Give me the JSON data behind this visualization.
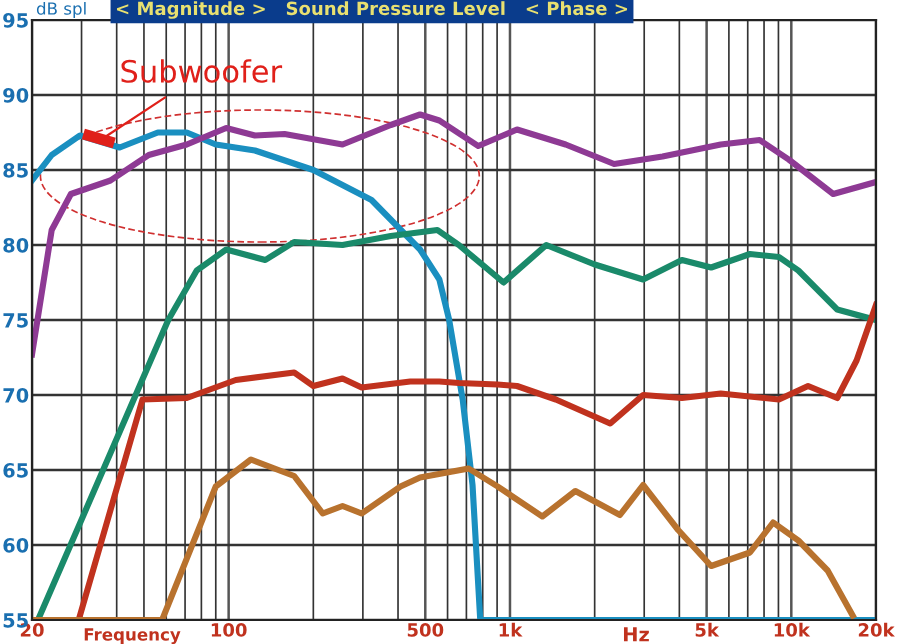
{
  "chart_data": {
    "type": "line",
    "title": "< Magnitude >   Sound Pressure Level   < Phase >",
    "ylabel": "dB spl",
    "xlabel": "Frequency",
    "annotations": [
      {
        "text": "Subwoofer",
        "x": 35,
        "y": 87.0
      },
      "Hz"
    ],
    "xlim": [
      20,
      20000
    ],
    "ylim": [
      55,
      95
    ],
    "xticks": [
      20,
      100,
      500,
      {
        "value": 1000,
        "label": "1k"
      },
      {
        "value": 5000,
        "label": "5k"
      },
      {
        "value": 10000,
        "label": "10k"
      },
      {
        "value": 20000,
        "label": "20k"
      }
    ],
    "yticks": [
      55,
      60,
      65,
      70,
      75,
      80,
      85,
      90,
      95
    ],
    "log": "x",
    "grid": true,
    "marker": "none",
    "line_style": "solid",
    "series": [
      {
        "color": "#1a8fc0",
        "x": [
          20,
          23.5,
          29.6,
          41,
          56,
          71,
          90,
          124,
          200,
          322,
          479,
          561,
          608,
          679,
          736,
          784,
          20000
        ],
        "values": [
          84.3,
          86.0,
          87.3,
          86.5,
          87.5,
          87.5,
          86.7,
          86.3,
          85.0,
          83.0,
          79.7,
          77.7,
          75.0,
          69.7,
          64.0,
          55.0,
          55.0
        ]
      },
      {
        "color": "#8e3a94",
        "x": [
          20,
          23.5,
          27.5,
          38,
          52,
          71,
          98,
          124,
          158,
          254,
          377,
          479,
          561,
          771,
          1059,
          1577,
          2345,
          3485,
          5613,
          7715,
          9790,
          14090,
          20000
        ],
        "values": [
          72.7,
          81.0,
          83.4,
          84.3,
          86.0,
          86.7,
          87.8,
          87.3,
          87.4,
          86.7,
          88.0,
          88.7,
          88.3,
          86.6,
          87.7,
          86.7,
          85.4,
          85.9,
          86.7,
          87.0,
          85.7,
          83.4,
          84.2
        ]
      },
      {
        "color": "#1a8a6a",
        "x": [
          21,
          61,
          77,
          98,
          135,
          171,
          254,
          377,
          552,
          658,
          949,
          1346,
          2000,
          2973,
          4085,
          5188,
          7127,
          9036,
          10595,
          14560,
          20000
        ],
        "values": [
          55.0,
          75.0,
          78.3,
          79.7,
          79.0,
          80.2,
          80.0,
          80.6,
          81.0,
          80.0,
          77.5,
          80.0,
          78.7,
          77.7,
          79.0,
          78.5,
          79.4,
          79.2,
          78.3,
          75.7,
          75.0
        ]
      },
      {
        "color": "#c0321e",
        "x": [
          29.3,
          49.4,
          71,
          106,
          171,
          200,
          254,
          297,
          442,
          561,
          658,
          904,
          1059,
          1456,
          2271,
          2973,
          4085,
          5613,
          9036,
          11470,
          14560,
          17060,
          20000
        ],
        "values": [
          55.0,
          69.7,
          69.8,
          71.0,
          71.5,
          70.6,
          71.1,
          70.5,
          70.9,
          70.9,
          70.8,
          70.7,
          70.6,
          69.7,
          68.1,
          70.0,
          69.8,
          70.1,
          69.7,
          70.6,
          69.8,
          72.3,
          76.0
        ]
      },
      {
        "color": "#b8722e",
        "x": [
          20,
          58,
          90,
          120,
          171,
          216,
          254,
          297,
          408,
          479,
          713,
          904,
          1303,
          1707,
          2460,
          2973,
          3962,
          5188,
          7127,
          8616,
          10595,
          13460,
          16530
        ],
        "values": [
          55.0,
          55.0,
          63.9,
          65.7,
          64.6,
          62.1,
          62.6,
          62.1,
          63.9,
          64.5,
          65.1,
          63.9,
          61.9,
          63.6,
          62.0,
          64.0,
          61.0,
          58.6,
          59.5,
          61.5,
          60.3,
          58.3,
          55.3
        ]
      }
    ]
  }
}
